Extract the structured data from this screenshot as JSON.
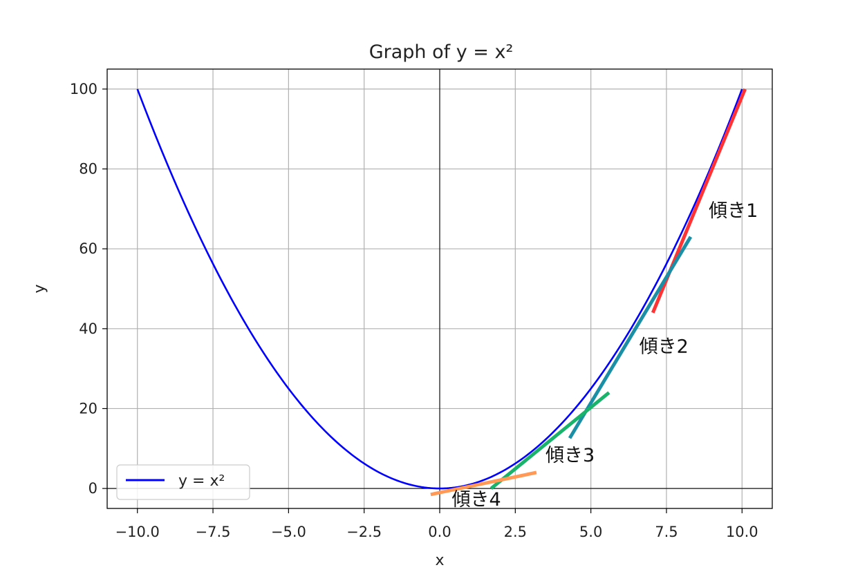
{
  "chart_data": {
    "type": "line",
    "title": "Graph of y = x²",
    "xlabel": "x",
    "ylabel": "y",
    "xlim": [
      -11.0,
      11.0
    ],
    "ylim": [
      -5.0,
      105.0
    ],
    "xticks": [
      -10.0,
      -7.5,
      -5.0,
      -2.5,
      0.0,
      2.5,
      5.0,
      7.5,
      10.0
    ],
    "xtick_labels": [
      "−10.0",
      "−7.5",
      "−5.0",
      "−2.5",
      "0.0",
      "2.5",
      "5.0",
      "7.5",
      "10.0"
    ],
    "yticks": [
      0,
      20,
      40,
      60,
      80,
      100
    ],
    "ytick_labels": [
      "0",
      "20",
      "40",
      "60",
      "80",
      "100"
    ],
    "grid": true,
    "legend_position": "lower-left",
    "series": [
      {
        "name": "y = x²",
        "color": "#0000ff",
        "function": "x^2",
        "x_range": [
          -10,
          10
        ]
      }
    ],
    "reference_lines": [
      {
        "orientation": "horizontal",
        "value": 0,
        "color": "#000000"
      },
      {
        "orientation": "vertical",
        "value": 0,
        "color": "#000000"
      }
    ],
    "tangent_segments": [
      {
        "label": "傾き1",
        "color": "#ff3333",
        "x": [
          7.05,
          10.1
        ],
        "y": [
          44.0,
          100.0
        ],
        "label_at": [
          8.9,
          68.0
        ]
      },
      {
        "label": "傾き2",
        "color": "#1a8fa6",
        "x": [
          4.3,
          8.3
        ],
        "y": [
          12.6,
          63.0
        ],
        "label_at": [
          6.6,
          34.0
        ]
      },
      {
        "label": "傾き3",
        "color": "#19b36b",
        "x": [
          1.7,
          5.6
        ],
        "y": [
          0.0,
          24.0
        ],
        "label_at": [
          3.5,
          6.8
        ]
      },
      {
        "label": "傾き4",
        "color": "#ff9955",
        "x": [
          -0.3,
          3.2
        ],
        "y": [
          -1.5,
          4.0
        ],
        "label_at": [
          0.4,
          -4.3
        ]
      }
    ]
  }
}
